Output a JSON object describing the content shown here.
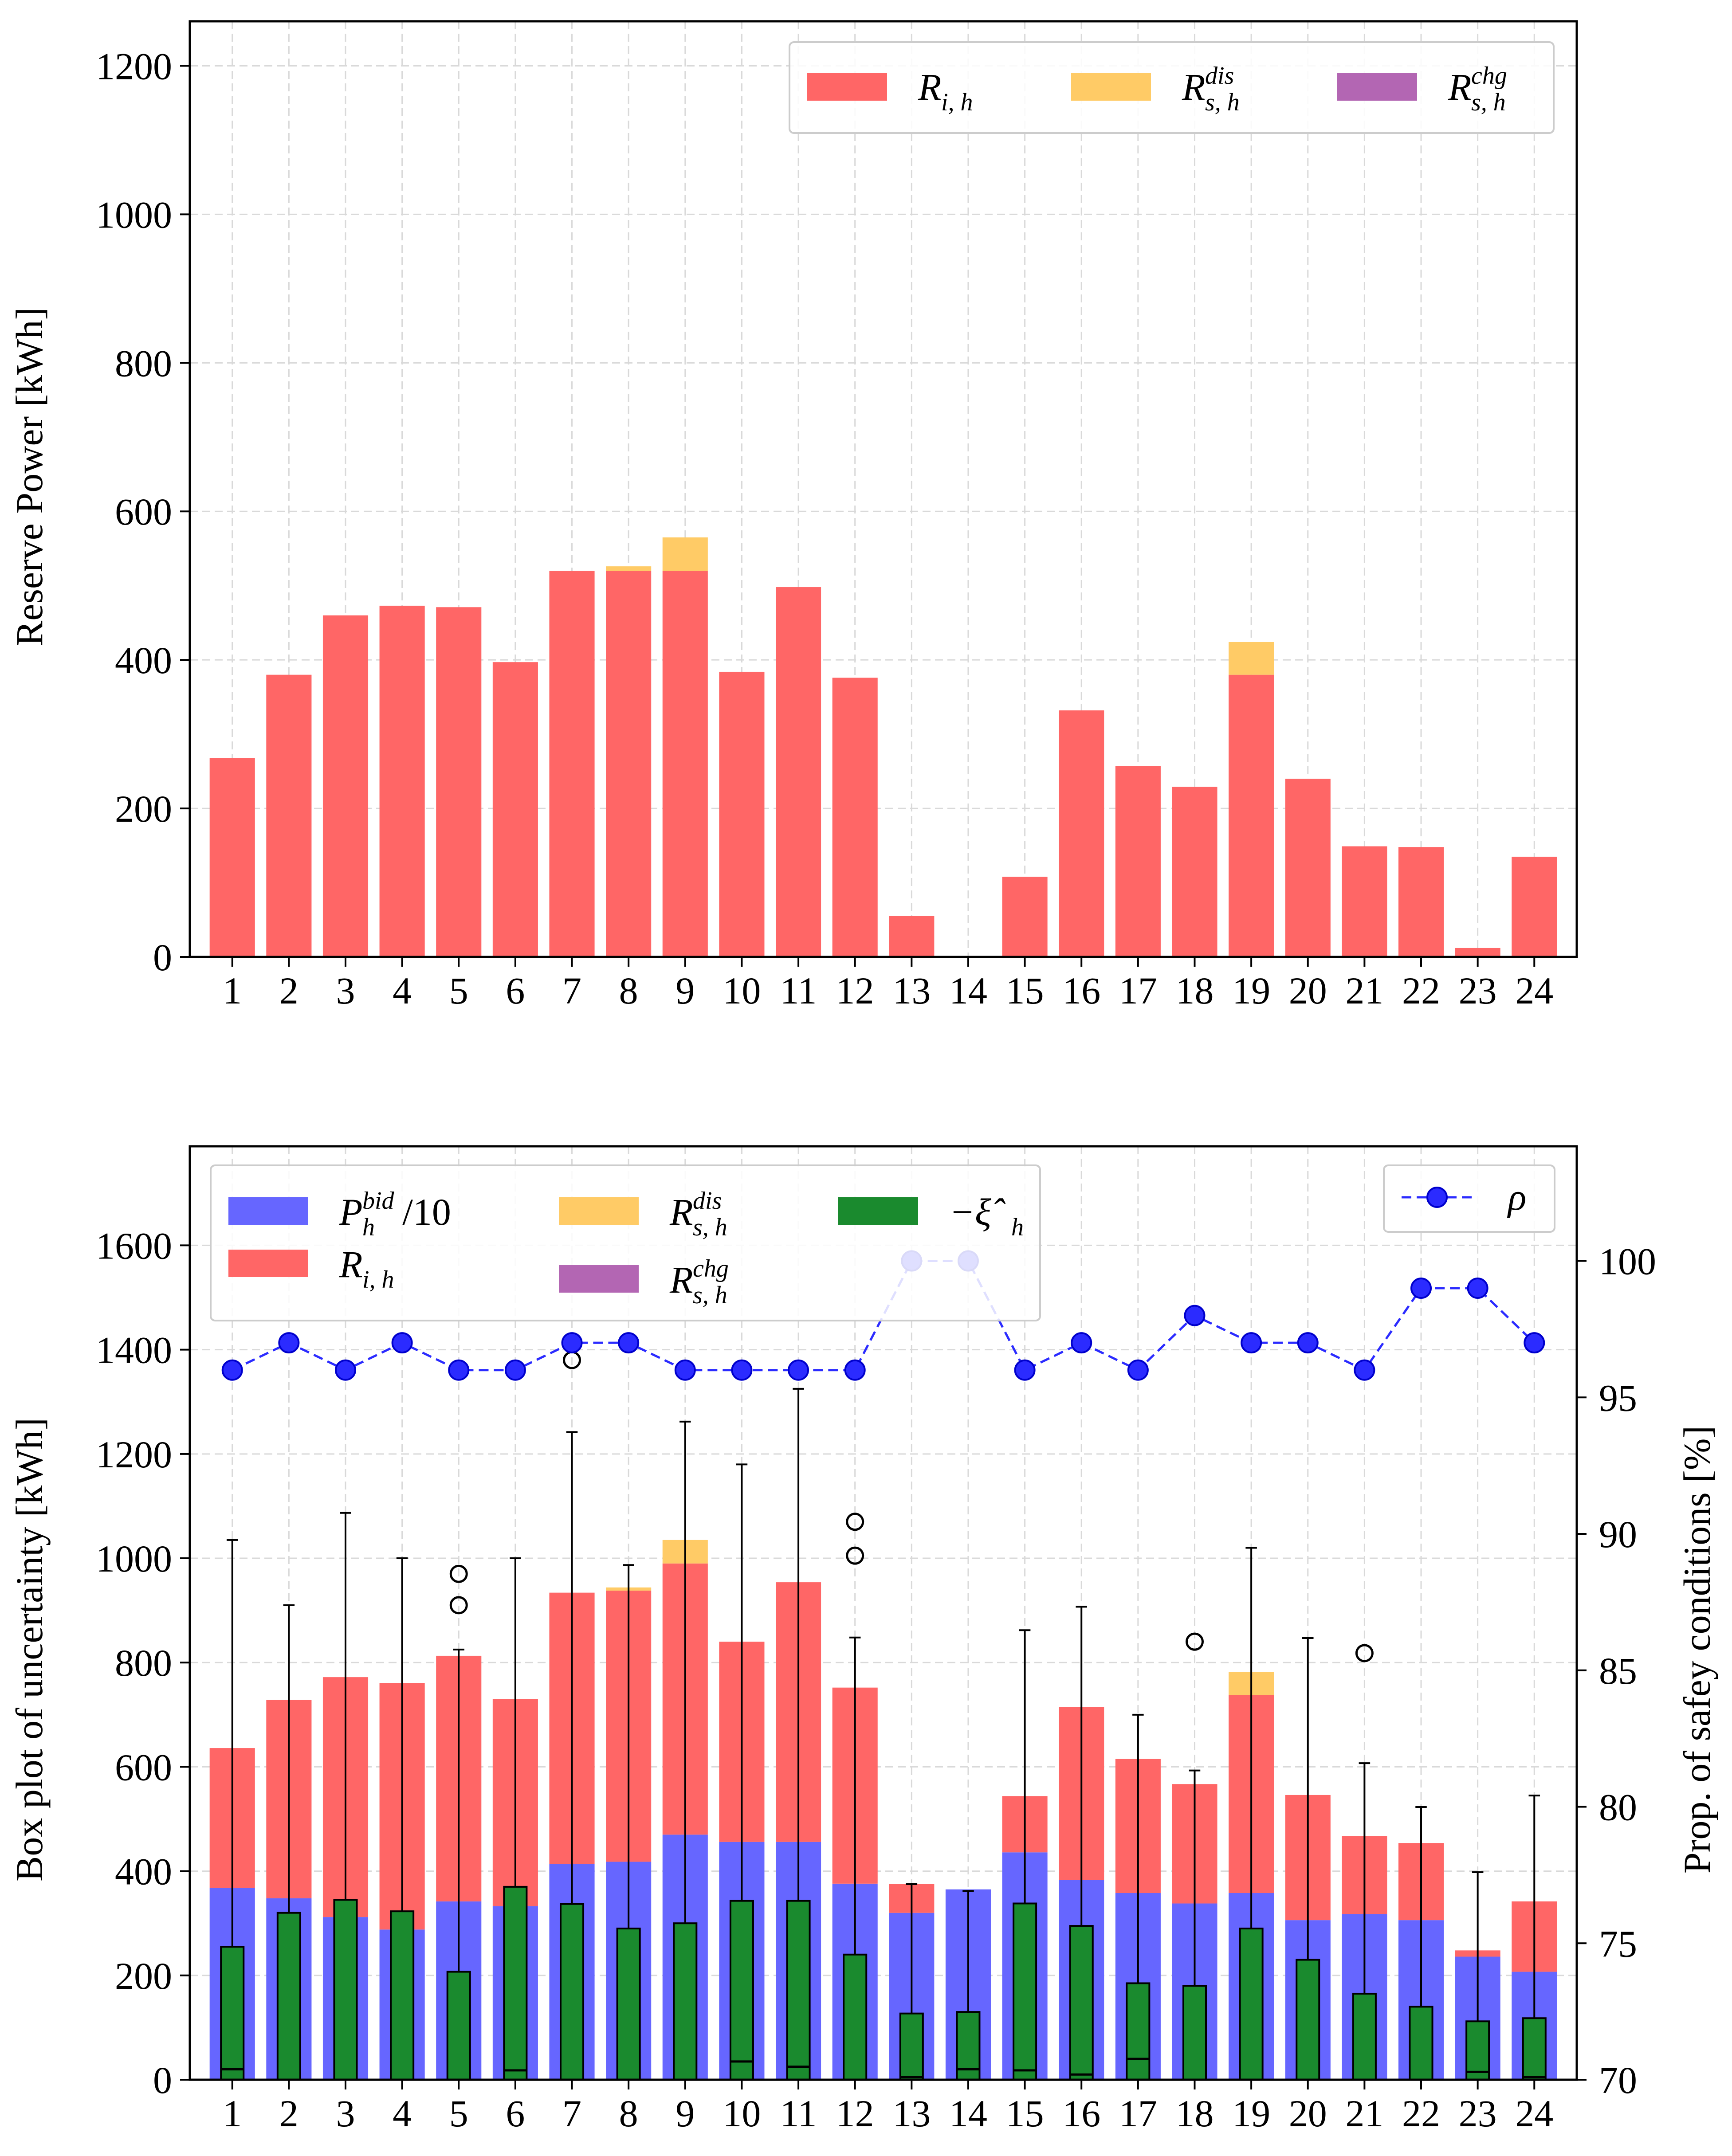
{
  "colors": {
    "R_ih": "#ff6666",
    "R_dis": "#ffcb66",
    "R_chg": "#b366b3",
    "P_bid": "#6666ff",
    "xi": "#1a8a2e",
    "rho": "#2b2bff",
    "grid": "#d9d9d9"
  },
  "chart_data": [
    {
      "type": "bar",
      "stacked": true,
      "ylabel": "Reserve Power [kWh]",
      "xlabel": "",
      "ylim": [
        0,
        1260
      ],
      "yticks": [
        0,
        200,
        400,
        600,
        800,
        1000,
        1200
      ],
      "grid": true,
      "legend_position": "top-right",
      "categories": [
        "1",
        "2",
        "3",
        "4",
        "5",
        "6",
        "7",
        "8",
        "9",
        "10",
        "11",
        "12",
        "13",
        "14",
        "15",
        "16",
        "17",
        "18",
        "19",
        "20",
        "21",
        "22",
        "23",
        "24"
      ],
      "series": [
        {
          "name": "R_{i,h}",
          "legend_main": "R",
          "legend_sub": "i, h",
          "legend_sup": "",
          "color_key": "R_ih",
          "values": [
            268,
            380,
            460,
            473,
            471,
            397,
            520,
            520,
            520,
            384,
            498,
            376,
            55,
            0,
            108,
            332,
            257,
            229,
            380,
            240,
            149,
            148,
            12,
            135
          ]
        },
        {
          "name": "R_{s,h}^{dis}",
          "legend_main": "R",
          "legend_sub": "s, h",
          "legend_sup": "dis",
          "color_key": "R_dis",
          "values": [
            0,
            0,
            0,
            0,
            0,
            0,
            0,
            6,
            45,
            0,
            0,
            0,
            0,
            0,
            0,
            0,
            0,
            0,
            44,
            0,
            0,
            0,
            0,
            0
          ]
        },
        {
          "name": "R_{s,h}^{chg}",
          "legend_main": "R",
          "legend_sub": "s, h",
          "legend_sup": "chg",
          "color_key": "R_chg",
          "values": [
            0,
            0,
            0,
            0,
            0,
            0,
            0,
            0,
            0,
            0,
            0,
            0,
            0,
            0,
            0,
            0,
            0,
            0,
            0,
            0,
            0,
            0,
            0,
            0
          ]
        }
      ]
    },
    {
      "type": "bar",
      "stacked": true,
      "ylabel": "Box plot of uncertainty [kWh]",
      "ylabel_right": "Prop. of safey conditions [%]",
      "xlabel": "",
      "ylim": [
        0,
        1790
      ],
      "yticks": [
        0,
        200,
        400,
        600,
        800,
        1000,
        1200,
        1400,
        1600
      ],
      "ylim_right": [
        70,
        104.2
      ],
      "yticks_right": [
        70,
        75,
        80,
        85,
        90,
        95,
        100
      ],
      "grid": true,
      "legend_position": "top-left",
      "legend_right_position": "top-right",
      "categories": [
        "1",
        "2",
        "3",
        "4",
        "5",
        "6",
        "7",
        "8",
        "9",
        "10",
        "11",
        "12",
        "13",
        "14",
        "15",
        "16",
        "17",
        "18",
        "19",
        "20",
        "21",
        "22",
        "23",
        "24"
      ],
      "series": [
        {
          "name": "P_h^{bid}/10",
          "legend_main": "P",
          "legend_sub": "h",
          "legend_sup": "bid",
          "legend_tail": "/10",
          "color_key": "P_bid",
          "values": [
            368,
            348,
            312,
            288,
            342,
            333,
            414,
            418,
            470,
            456,
            456,
            376,
            320,
            365,
            436,
            383,
            358,
            338,
            358,
            306,
            318,
            306,
            236,
            207
          ]
        },
        {
          "name": "R_{i,h}",
          "legend_main": "R",
          "legend_sub": "i, h",
          "legend_sup": "",
          "color_key": "R_ih",
          "values": [
            268,
            380,
            460,
            473,
            471,
            397,
            520,
            520,
            520,
            384,
            498,
            376,
            55,
            0,
            108,
            332,
            257,
            229,
            380,
            240,
            149,
            148,
            12,
            135
          ]
        },
        {
          "name": "R_{s,h}^{dis}",
          "legend_main": "R",
          "legend_sub": "s, h",
          "legend_sup": "dis",
          "color_key": "R_dis",
          "values": [
            0,
            0,
            0,
            0,
            0,
            0,
            0,
            6,
            45,
            0,
            0,
            0,
            0,
            0,
            0,
            0,
            0,
            0,
            44,
            0,
            0,
            0,
            0,
            0
          ]
        },
        {
          "name": "R_{s,h}^{chg}",
          "legend_main": "R",
          "legend_sub": "s, h",
          "legend_sup": "chg",
          "color_key": "R_chg",
          "values": [
            0,
            0,
            0,
            0,
            0,
            0,
            0,
            0,
            0,
            0,
            0,
            0,
            0,
            0,
            0,
            0,
            0,
            0,
            0,
            0,
            0,
            0,
            0,
            0
          ]
        }
      ],
      "boxplot": {
        "name": "-ξ̂_h",
        "legend_main": "−ξ̂",
        "legend_sub": "h",
        "color_key": "xi",
        "boxes": [
          {
            "whislo": 0,
            "q1": 0,
            "med": 20,
            "q3": 255,
            "whishi": 1035,
            "fliers": []
          },
          {
            "whislo": 0,
            "q1": 0,
            "med": 0,
            "q3": 320,
            "whishi": 910,
            "fliers": []
          },
          {
            "whislo": 0,
            "q1": 0,
            "med": 0,
            "q3": 345,
            "whishi": 1087,
            "fliers": []
          },
          {
            "whislo": 0,
            "q1": 0,
            "med": 0,
            "q3": 323,
            "whishi": 1000,
            "fliers": []
          },
          {
            "whislo": 0,
            "q1": 0,
            "med": 0,
            "q3": 207,
            "whishi": 825,
            "fliers": [
              970,
              910
            ]
          },
          {
            "whislo": 0,
            "q1": 0,
            "med": 18,
            "q3": 370,
            "whishi": 1000,
            "fliers": []
          },
          {
            "whislo": 0,
            "q1": 0,
            "med": 0,
            "q3": 337,
            "whishi": 1242,
            "fliers": [
              1380
            ]
          },
          {
            "whislo": 0,
            "q1": 0,
            "med": 0,
            "q3": 290,
            "whishi": 987,
            "fliers": []
          },
          {
            "whislo": 0,
            "q1": 0,
            "med": 0,
            "q3": 300,
            "whishi": 1262,
            "fliers": []
          },
          {
            "whislo": 0,
            "q1": 0,
            "med": 35,
            "q3": 343,
            "whishi": 1180,
            "fliers": []
          },
          {
            "whislo": 0,
            "q1": 0,
            "med": 25,
            "q3": 343,
            "whishi": 1325,
            "fliers": []
          },
          {
            "whislo": 0,
            "q1": 0,
            "med": 0,
            "q3": 240,
            "whishi": 848,
            "fliers": [
              1070,
              1005
            ]
          },
          {
            "whislo": 0,
            "q1": 0,
            "med": 5,
            "q3": 127,
            "whishi": 375,
            "fliers": []
          },
          {
            "whislo": 0,
            "q1": 0,
            "med": 20,
            "q3": 130,
            "whishi": 362,
            "fliers": []
          },
          {
            "whislo": 0,
            "q1": 0,
            "med": 18,
            "q3": 338,
            "whishi": 862,
            "fliers": []
          },
          {
            "whislo": 0,
            "q1": 0,
            "med": 10,
            "q3": 295,
            "whishi": 907,
            "fliers": []
          },
          {
            "whislo": 0,
            "q1": 0,
            "med": 40,
            "q3": 185,
            "whishi": 700,
            "fliers": []
          },
          {
            "whislo": 0,
            "q1": 0,
            "med": 0,
            "q3": 180,
            "whishi": 593,
            "fliers": [
              840
            ]
          },
          {
            "whislo": 0,
            "q1": 0,
            "med": 0,
            "q3": 290,
            "whishi": 1020,
            "fliers": []
          },
          {
            "whislo": 0,
            "q1": 0,
            "med": 0,
            "q3": 230,
            "whishi": 847,
            "fliers": []
          },
          {
            "whislo": 0,
            "q1": 0,
            "med": 0,
            "q3": 165,
            "whishi": 607,
            "fliers": [
              818
            ]
          },
          {
            "whislo": 0,
            "q1": 0,
            "med": 0,
            "q3": 140,
            "whishi": 523,
            "fliers": []
          },
          {
            "whislo": 0,
            "q1": 0,
            "med": 15,
            "q3": 112,
            "whishi": 398,
            "fliers": []
          },
          {
            "whislo": 0,
            "q1": 0,
            "med": 5,
            "q3": 118,
            "whishi": 545,
            "fliers": []
          }
        ]
      },
      "line_right": {
        "name": "ρ",
        "legend_label": "ρ",
        "color_key": "rho",
        "values": [
          96,
          97,
          96,
          97,
          96,
          96,
          97,
          97,
          96,
          96,
          96,
          96,
          100,
          100,
          96,
          97,
          96,
          98,
          97,
          97,
          96,
          99,
          99,
          97
        ]
      }
    }
  ]
}
